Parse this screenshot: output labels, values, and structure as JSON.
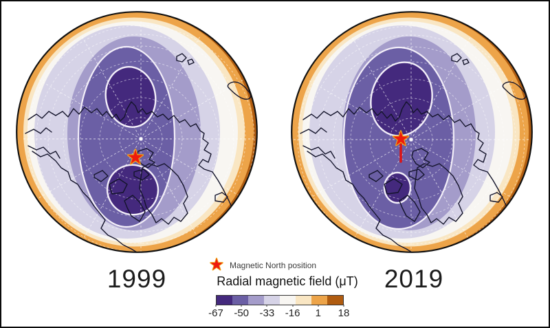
{
  "panels": [
    {
      "year": "1999"
    },
    {
      "year": "2019"
    }
  ],
  "legend": {
    "star_label": "Magnetic North position",
    "title": "Radial magnetic field (μT)",
    "ticks": [
      "-67",
      "-50",
      "-33",
      "-16",
      "1",
      "18"
    ]
  },
  "colorbar": {
    "min": -67,
    "max": 18,
    "scale": [
      "#44297d",
      "#6b5fa5",
      "#a49cca",
      "#d6d3e7",
      "#f8f6f2",
      "#f9e6c3",
      "#eda449",
      "#b05c10"
    ]
  },
  "colors": {
    "star_fill": "#ee1b0c",
    "star_outline": "#f0a818",
    "track": "#dd1414",
    "coastline": "#14142b",
    "contour_line": "#f3eff9",
    "graticule": "#ffffff",
    "limb": "#111111"
  }
}
